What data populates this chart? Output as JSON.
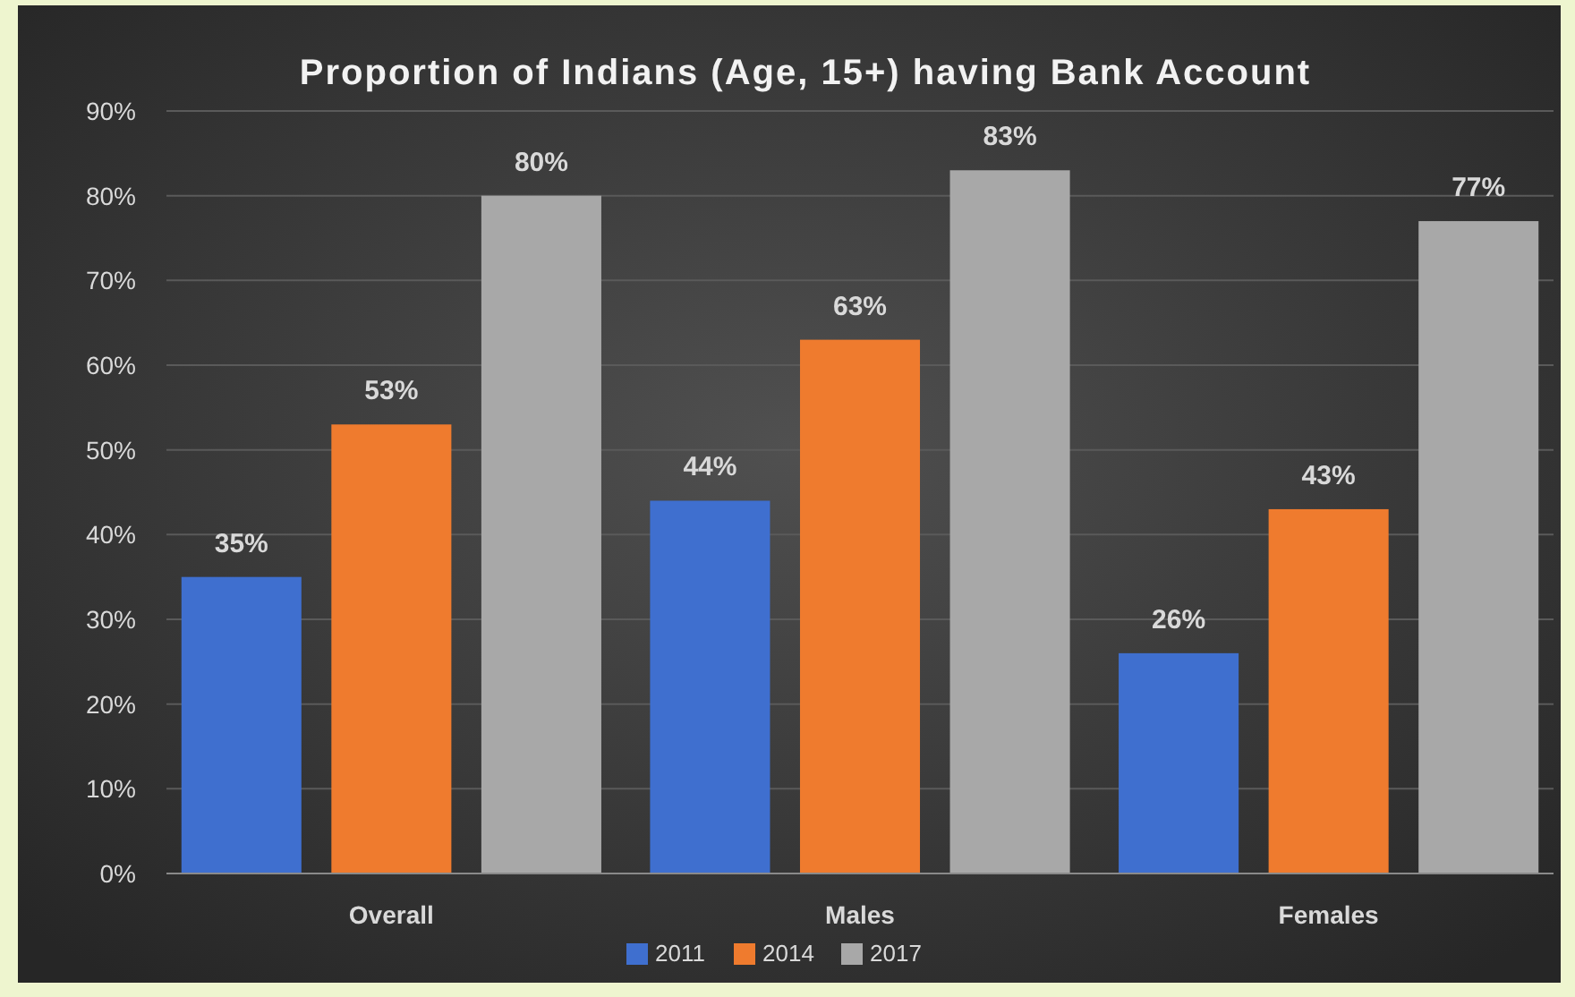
{
  "chart_data": {
    "type": "bar",
    "title": "Proportion of Indians (Age, 15+) having Bank Account",
    "categories": [
      "Overall",
      "Males",
      "Females"
    ],
    "series": [
      {
        "name": "2011",
        "color": "#3f6fcf",
        "values": [
          35,
          44,
          26
        ],
        "value_labels": [
          "35%",
          "44%",
          "26%"
        ]
      },
      {
        "name": "2014",
        "color": "#ef7b2e",
        "values": [
          53,
          63,
          43
        ],
        "value_labels": [
          "53%",
          "63%",
          "43%"
        ]
      },
      {
        "name": "2017",
        "color": "#a8a8a8",
        "values": [
          80,
          83,
          77
        ],
        "value_labels": [
          "80%",
          "83%",
          "77%"
        ]
      }
    ],
    "ylim": [
      0,
      90
    ],
    "yticks": [
      {
        "value": 0,
        "label": "0%"
      },
      {
        "value": 10,
        "label": "10%"
      },
      {
        "value": 20,
        "label": "20%"
      },
      {
        "value": 30,
        "label": "30%"
      },
      {
        "value": 40,
        "label": "40%"
      },
      {
        "value": 50,
        "label": "50%"
      },
      {
        "value": 60,
        "label": "60%"
      },
      {
        "value": 70,
        "label": "70%"
      },
      {
        "value": 80,
        "label": "80%"
      },
      {
        "value": 90,
        "label": "90%"
      }
    ],
    "grid": "y",
    "legend": "bottom"
  }
}
